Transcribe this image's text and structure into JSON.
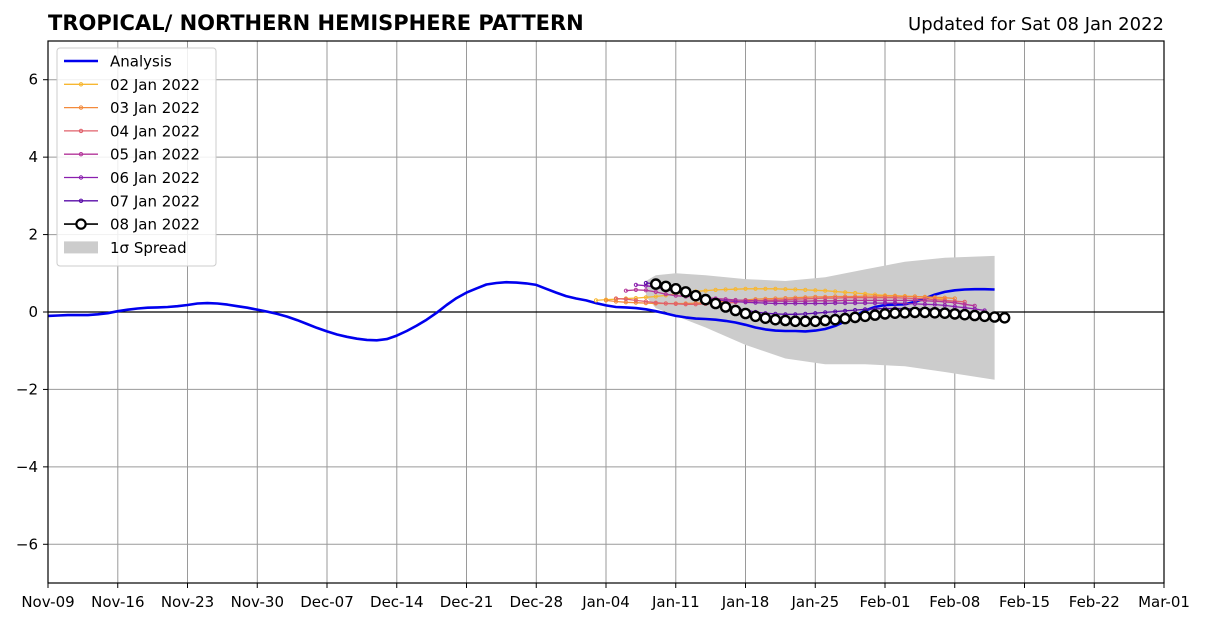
{
  "chart_data": {
    "type": "line",
    "title": "TROPICAL/ NORTHERN HEMISPHERE PATTERN",
    "subtitle": "Updated for Sat 08 Jan 2022",
    "xlabel": "",
    "ylabel": "",
    "xlim": [
      "2021-11-09",
      "2022-03-01"
    ],
    "ylim": [
      -7,
      7
    ],
    "grid": true,
    "legend_position": "top-left",
    "x_ticks": [
      "2021-11-09",
      "2021-11-16",
      "2021-11-23",
      "2021-11-30",
      "2021-12-07",
      "2021-12-14",
      "2021-12-21",
      "2021-12-28",
      "2022-01-04",
      "2022-01-11",
      "2022-01-18",
      "2022-01-25",
      "2022-02-01",
      "2022-02-08",
      "2022-02-15",
      "2022-02-22",
      "2022-03-01"
    ],
    "x_tick_labels": [
      "Nov-09",
      "Nov-16",
      "Nov-23",
      "Nov-30",
      "Dec-07",
      "Dec-14",
      "Dec-21",
      "Dec-28",
      "Jan-04",
      "Jan-11",
      "Jan-18",
      "Jan-25",
      "Feb-01",
      "Feb-08",
      "Feb-15",
      "Feb-22",
      "Mar-01"
    ],
    "y_ticks": [
      -6,
      -4,
      -2,
      0,
      2,
      4,
      6
    ],
    "y_tick_labels": [
      "−6",
      "−4",
      "−2",
      "0",
      "2",
      "4",
      "6"
    ],
    "analysis": {
      "name": "Analysis",
      "color": "#0000ee",
      "start": "2021-11-09",
      "values": [
        -0.1,
        -0.09,
        -0.08,
        -0.08,
        -0.08,
        -0.06,
        -0.03,
        0.02,
        0.06,
        0.09,
        0.11,
        0.12,
        0.13,
        0.15,
        0.18,
        0.22,
        0.23,
        0.22,
        0.19,
        0.15,
        0.11,
        0.06,
        0.01,
        -0.05,
        -0.12,
        -0.21,
        -0.31,
        -0.41,
        -0.5,
        -0.58,
        -0.64,
        -0.69,
        -0.72,
        -0.73,
        -0.7,
        -0.61,
        -0.49,
        -0.35,
        -0.2,
        -0.02,
        0.18,
        0.36,
        0.5,
        0.61,
        0.71,
        0.75,
        0.77,
        0.76,
        0.74,
        0.7,
        0.6,
        0.5,
        0.41,
        0.35,
        0.3,
        0.23,
        0.17,
        0.13,
        0.12,
        0.1,
        0.07,
        0.02,
        -0.04,
        -0.1,
        -0.14,
        -0.17,
        -0.18,
        -0.2,
        -0.23,
        -0.27,
        -0.33,
        -0.4,
        -0.45,
        -0.48,
        -0.49,
        -0.49,
        -0.5,
        -0.48,
        -0.44,
        -0.36,
        -0.24,
        -0.1,
        0.04,
        0.13,
        0.18,
        0.19,
        0.2,
        0.26,
        0.35,
        0.45,
        0.52,
        0.56,
        0.58,
        0.59,
        0.59,
        0.58
      ]
    },
    "spread": {
      "name": "1σ Spread",
      "color": "#cccccc",
      "dates": [
        "2022-01-08",
        "2022-01-09",
        "2022-01-11",
        "2022-01-14",
        "2022-01-18",
        "2022-01-22",
        "2022-01-26",
        "2022-01-30",
        "2022-02-03",
        "2022-02-07",
        "2022-02-12"
      ],
      "upper": [
        0.8,
        0.95,
        1.0,
        0.95,
        0.85,
        0.8,
        0.9,
        1.1,
        1.3,
        1.4,
        1.45
      ],
      "lower": [
        0.4,
        0.1,
        -0.1,
        -0.4,
        -0.85,
        -1.2,
        -1.35,
        -1.35,
        -1.4,
        -1.55,
        -1.75
      ]
    },
    "forecasts": [
      {
        "name": "02 Jan 2022",
        "color": "#f7b731",
        "start": "2022-01-03",
        "values": [
          0.3,
          0.32,
          0.33,
          0.35,
          0.36,
          0.38,
          0.4,
          0.43,
          0.47,
          0.5,
          0.53,
          0.55,
          0.57,
          0.58,
          0.59,
          0.6,
          0.6,
          0.6,
          0.6,
          0.59,
          0.58,
          0.57,
          0.56,
          0.55,
          0.53,
          0.51,
          0.49,
          0.47,
          0.45,
          0.43,
          0.42,
          0.41,
          0.4,
          0.38,
          0.36,
          0.33
        ]
      },
      {
        "name": "03 Jan 2022",
        "color": "#f38a3c",
        "start": "2022-01-04",
        "values": [
          0.3,
          0.27,
          0.25,
          0.24,
          0.23,
          0.22,
          0.22,
          0.22,
          0.22,
          0.23,
          0.24,
          0.26,
          0.28,
          0.3,
          0.31,
          0.33,
          0.34,
          0.35,
          0.36,
          0.37,
          0.38,
          0.39,
          0.39,
          0.4,
          0.4,
          0.4,
          0.41,
          0.41,
          0.41,
          0.41,
          0.4,
          0.4,
          0.39,
          0.38,
          0.37,
          0.35
        ]
      },
      {
        "name": "04 Jan 2022",
        "color": "#e0606b",
        "start": "2022-01-05",
        "values": [
          0.35,
          0.33,
          0.3,
          0.27,
          0.24,
          0.22,
          0.21,
          0.2,
          0.2,
          0.21,
          0.22,
          0.23,
          0.25,
          0.27,
          0.29,
          0.3,
          0.31,
          0.32,
          0.33,
          0.34,
          0.35,
          0.36,
          0.36,
          0.37,
          0.37,
          0.37,
          0.37,
          0.37,
          0.37,
          0.36,
          0.35,
          0.34,
          0.32,
          0.3,
          0.28,
          0.26
        ]
      },
      {
        "name": "05 Jan 2022",
        "color": "#b3359a",
        "start": "2022-01-06",
        "values": [
          0.55,
          0.57,
          0.56,
          0.52,
          0.46,
          0.42,
          0.4,
          0.39,
          0.37,
          0.35,
          0.33,
          0.31,
          0.3,
          0.29,
          0.28,
          0.28,
          0.28,
          0.28,
          0.28,
          0.29,
          0.29,
          0.29,
          0.3,
          0.3,
          0.3,
          0.3,
          0.3,
          0.3,
          0.3,
          0.3,
          0.29,
          0.28,
          0.26,
          0.24,
          0.2,
          0.16
        ]
      },
      {
        "name": "06 Jan 2022",
        "color": "#8a1fae",
        "start": "2022-01-07",
        "values": [
          0.7,
          0.68,
          0.64,
          0.58,
          0.52,
          0.46,
          0.41,
          0.36,
          0.32,
          0.29,
          0.27,
          0.25,
          0.24,
          0.23,
          0.22,
          0.22,
          0.22,
          0.22,
          0.22,
          0.22,
          0.23,
          0.23,
          0.23,
          0.23,
          0.23,
          0.23,
          0.23,
          0.22,
          0.21,
          0.2,
          0.19,
          0.17,
          0.14,
          0.11,
          0.08,
          0.04
        ]
      },
      {
        "name": "07 Jan 2022",
        "color": "#5a0ca8",
        "start": "2022-01-08",
        "values": [
          0.75,
          0.73,
          0.68,
          0.6,
          0.51,
          0.42,
          0.33,
          0.25,
          0.17,
          0.1,
          0.05,
          0.0,
          -0.03,
          -0.05,
          -0.06,
          -0.06,
          -0.05,
          -0.03,
          -0.01,
          0.01,
          0.03,
          0.05,
          0.07,
          0.08,
          0.09,
          0.09,
          0.09,
          0.08,
          0.08,
          0.07,
          0.05,
          0.03,
          0.01,
          -0.02,
          -0.05,
          -0.08
        ]
      },
      {
        "name": "08 Jan 2022",
        "color": "#000000",
        "start": "2022-01-09",
        "values": [
          0.72,
          0.66,
          0.6,
          0.52,
          0.42,
          0.32,
          0.22,
          0.13,
          0.04,
          -0.04,
          -0.11,
          -0.16,
          -0.2,
          -0.22,
          -0.24,
          -0.24,
          -0.24,
          -0.22,
          -0.2,
          -0.17,
          -0.14,
          -0.11,
          -0.08,
          -0.05,
          -0.03,
          -0.02,
          -0.01,
          -0.01,
          -0.02,
          -0.03,
          -0.05,
          -0.07,
          -0.09,
          -0.11,
          -0.13,
          -0.15
        ]
      }
    ]
  }
}
